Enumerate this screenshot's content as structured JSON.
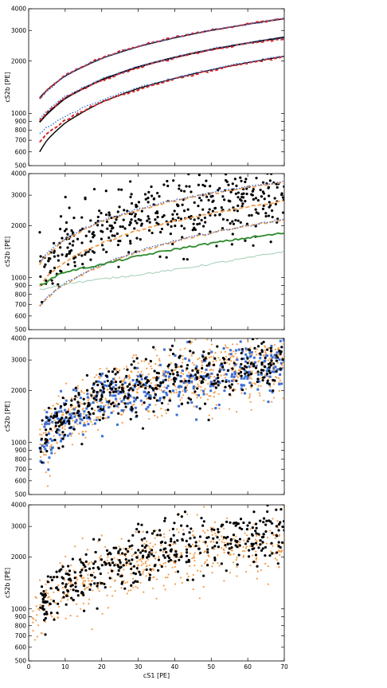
{
  "colors": {
    "black": "#000000",
    "red": "#d62728",
    "blue": "#3b6fd4",
    "orange": "#f39c4a",
    "green": "#2e8b2e",
    "lightgreen": "#9fcfb5"
  },
  "chart_data": [
    {
      "type": "line",
      "ylabel": "cS2b [PE]",
      "xlabel": "",
      "xlim": [
        0,
        70
      ],
      "ylim": [
        500,
        4000
      ],
      "yscale": "log",
      "yticks": [
        500,
        600,
        700,
        800,
        900,
        1000,
        2000,
        3000,
        4000
      ],
      "ytick_labels": [
        "500",
        "600",
        "700",
        "800",
        "900",
        "1000",
        "2000",
        "3000",
        "4000"
      ],
      "x_tick_labels_shown": false,
      "series": [
        {
          "style": "black-solid",
          "x": [
            3,
            5,
            10,
            20,
            30,
            40,
            50,
            60,
            70
          ],
          "values": [
            1230,
            1360,
            1640,
            2070,
            2420,
            2720,
            3000,
            3260,
            3500
          ]
        },
        {
          "style": "black-solid-thick",
          "x": [
            3,
            5,
            10,
            20,
            30,
            40,
            50,
            60,
            70
          ],
          "values": [
            890,
            990,
            1220,
            1560,
            1850,
            2100,
            2330,
            2540,
            2740
          ]
        },
        {
          "style": "black-solid",
          "x": [
            3,
            5,
            10,
            20,
            30,
            40,
            50,
            60,
            70
          ],
          "values": [
            600,
            700,
            880,
            1160,
            1390,
            1590,
            1780,
            1960,
            2130
          ]
        },
        {
          "style": "red-dashed",
          "x": [
            3,
            5,
            10,
            20,
            30,
            40,
            50,
            60,
            70
          ],
          "values": [
            1210,
            1350,
            1650,
            2090,
            2440,
            2740,
            3020,
            3270,
            3520
          ]
        },
        {
          "style": "red-dashed",
          "x": [
            3,
            5,
            10,
            20,
            30,
            40,
            50,
            60,
            70
          ],
          "values": [
            900,
            1010,
            1230,
            1540,
            1830,
            2080,
            2320,
            2520,
            2700
          ]
        },
        {
          "style": "red-dashed",
          "x": [
            3,
            5,
            10,
            20,
            30,
            40,
            50,
            60,
            70
          ],
          "values": [
            690,
            760,
            910,
            1160,
            1370,
            1570,
            1760,
            1940,
            2110
          ]
        },
        {
          "style": "blue-dotted",
          "x": [
            3,
            5,
            10,
            20,
            30,
            40,
            50,
            60,
            70
          ],
          "values": [
            1200,
            1340,
            1640,
            2080,
            2430,
            2730,
            3010,
            3260,
            3510
          ]
        },
        {
          "style": "blue-dotted",
          "x": [
            3,
            5,
            10,
            20,
            30,
            40,
            50,
            60,
            70
          ],
          "values": [
            920,
            1030,
            1250,
            1570,
            1860,
            2110,
            2350,
            2550,
            2740
          ]
        },
        {
          "style": "blue-dotted",
          "x": [
            3,
            5,
            10,
            20,
            30,
            40,
            50,
            60,
            70
          ],
          "values": [
            760,
            830,
            960,
            1190,
            1400,
            1600,
            1790,
            1970,
            2140
          ]
        }
      ]
    },
    {
      "type": "scatter",
      "ylabel": "cS2b [PE]",
      "xlabel": "",
      "xlim": [
        0,
        70
      ],
      "ylim": [
        500,
        4000
      ],
      "yscale": "log",
      "yticks": [
        500,
        600,
        700,
        800,
        900,
        1000,
        2000,
        3000,
        4000
      ],
      "ytick_labels": [
        "500",
        "600",
        "700",
        "800",
        "900",
        "1000",
        "2000",
        "3000",
        "4000"
      ],
      "x_tick_labels_shown": false,
      "points": {
        "style": "black-dots",
        "count": 420,
        "x_range": [
          3,
          70
        ],
        "median": {
          "x": [
            3,
            10,
            20,
            30,
            40,
            50,
            60,
            70
          ],
          "values": [
            980,
            1450,
            1860,
            2160,
            2400,
            2600,
            2780,
            2950
          ]
        },
        "spread": 0.22
      },
      "series": [
        {
          "style": "orange-dashed",
          "x": [
            3,
            5,
            10,
            20,
            30,
            40,
            50,
            60,
            70
          ],
          "values": [
            1200,
            1350,
            1660,
            2110,
            2470,
            2780,
            3060,
            3320,
            3560
          ]
        },
        {
          "style": "orange-dashed",
          "x": [
            3,
            5,
            10,
            20,
            30,
            40,
            50,
            60,
            70
          ],
          "values": [
            900,
            1010,
            1240,
            1580,
            1870,
            2120,
            2360,
            2570,
            2770
          ]
        },
        {
          "style": "orange-dashed",
          "x": [
            3,
            5,
            10,
            20,
            30,
            40,
            50,
            60,
            70
          ],
          "values": [
            680,
            760,
            920,
            1180,
            1410,
            1620,
            1810,
            1990,
            2160
          ]
        },
        {
          "style": "blue-dotted",
          "x": [
            3,
            5,
            10,
            20,
            30,
            40,
            50,
            60,
            70
          ],
          "values": [
            1230,
            1380,
            1690,
            2140,
            2500,
            2810,
            3090,
            3350,
            3600
          ]
        },
        {
          "style": "blue-dotted",
          "x": [
            3,
            5,
            10,
            20,
            30,
            40,
            50,
            60,
            70
          ],
          "values": [
            690,
            770,
            930,
            1190,
            1420,
            1630,
            1820,
            2000,
            2170
          ]
        },
        {
          "style": "green-solid",
          "x": [
            3,
            5,
            8,
            10,
            20,
            30,
            40,
            50,
            60,
            70
          ],
          "values": [
            920,
            940,
            1040,
            1080,
            1190,
            1330,
            1460,
            1580,
            1700,
            1810
          ]
        },
        {
          "style": "lightgreen-solid",
          "x": [
            3,
            5,
            10,
            20,
            30,
            40,
            50,
            60,
            70
          ],
          "values": [
            850,
            870,
            920,
            980,
            1040,
            1110,
            1200,
            1300,
            1420
          ]
        }
      ]
    },
    {
      "type": "scatter",
      "ylabel": "cS2b [PE]",
      "xlabel": "",
      "xlim": [
        0,
        70
      ],
      "ylim": [
        500,
        4000
      ],
      "yscale": "log",
      "yticks": [
        500,
        600,
        700,
        800,
        900,
        1000,
        2000,
        3000,
        4000
      ],
      "ytick_labels": [
        "500",
        "600",
        "700",
        "800",
        "900",
        "1000",
        "2000",
        "3000",
        "4000"
      ],
      "x_tick_labels_shown": false,
      "point_sets": [
        {
          "style": "orange-small",
          "count": 700,
          "x_range": [
            3,
            70
          ],
          "median": {
            "x": [
              3,
              10,
              20,
              30,
              40,
              50,
              60,
              70
            ],
            "values": [
              980,
              1400,
              1780,
              2050,
              2300,
              2480,
              2640,
              2780
            ]
          },
          "spread": 0.2
        },
        {
          "style": "blue-squares",
          "count": 380,
          "x_range": [
            3,
            70
          ],
          "median": {
            "x": [
              3,
              10,
              20,
              30,
              40,
              50,
              60,
              70
            ],
            "values": [
              960,
              1350,
              1720,
              2000,
              2230,
              2420,
              2580,
              2700
            ]
          },
          "spread": 0.18
        },
        {
          "style": "black-dots",
          "count": 400,
          "x_range": [
            3,
            70
          ],
          "median": {
            "x": [
              3,
              10,
              20,
              30,
              40,
              50,
              60,
              70
            ],
            "values": [
              990,
              1420,
              1800,
              2080,
              2320,
              2520,
              2680,
              2820
            ]
          },
          "spread": 0.18
        }
      ]
    },
    {
      "type": "scatter",
      "ylabel": "cS2b [PE]",
      "xlabel": "cS1 [PE]",
      "xlim": [
        0,
        70
      ],
      "ylim": [
        500,
        4000
      ],
      "yscale": "log",
      "xticks": [
        0,
        10,
        20,
        30,
        40,
        50,
        60,
        70
      ],
      "xtick_labels": [
        "0",
        "10",
        "20",
        "30",
        "40",
        "50",
        "60",
        "70"
      ],
      "yticks": [
        500,
        600,
        700,
        800,
        900,
        1000,
        2000,
        3000,
        4000
      ],
      "ytick_labels": [
        "500",
        "600",
        "700",
        "800",
        "900",
        "1000",
        "2000",
        "3000",
        "4000"
      ],
      "x_tick_labels_shown": true,
      "point_sets": [
        {
          "style": "orange-small",
          "count": 520,
          "x_range": [
            1,
            70
          ],
          "median": {
            "x": [
              2,
              10,
              20,
              30,
              40,
              50,
              60,
              70
            ],
            "values": [
              980,
              1300,
              1620,
              1850,
              2040,
              2200,
              2340,
              2460
            ]
          },
          "spread": 0.2
        },
        {
          "style": "black-dots",
          "count": 420,
          "x_range": [
            3,
            70
          ],
          "median": {
            "x": [
              3,
              10,
              20,
              30,
              40,
              50,
              60,
              70
            ],
            "values": [
              980,
              1360,
              1740,
              2010,
              2240,
              2430,
              2600,
              2750
            ]
          },
          "spread": 0.18
        }
      ]
    }
  ]
}
